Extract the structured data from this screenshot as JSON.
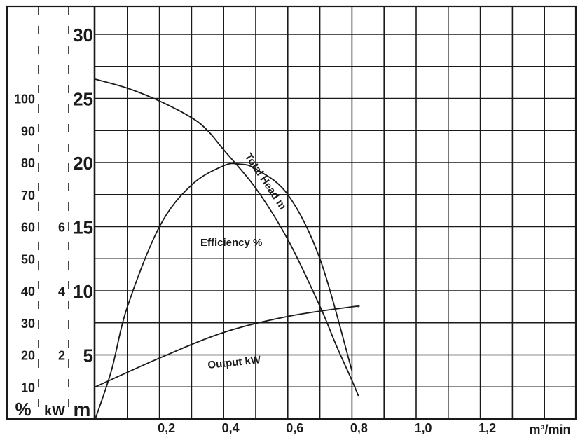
{
  "chart_data": {
    "type": "line",
    "xlabel": "m³/min",
    "x_ticks": [
      "0,2",
      "0,4",
      "0,6",
      "0,8",
      "1,0",
      "1,2"
    ],
    "xlim": [
      0,
      1.5
    ],
    "axes": {
      "head": {
        "unit": "m",
        "ticks": [
          "5",
          "10",
          "15",
          "20",
          "25",
          "30"
        ],
        "ylim": [
          0,
          30
        ]
      },
      "power": {
        "unit": "kW",
        "ticks": [
          "2",
          "4",
          "6"
        ],
        "ylim": [
          0,
          15
        ]
      },
      "efficiency": {
        "unit": "%",
        "ticks": [
          "10",
          "20",
          "30",
          "40",
          "50",
          "60",
          "70",
          "80",
          "90",
          "100"
        ],
        "ylim": [
          0,
          100
        ]
      }
    },
    "grid": true,
    "series": [
      {
        "name": "Total Head m",
        "axis": "head",
        "x": [
          0,
          0.1,
          0.2,
          0.3,
          0.35,
          0.4,
          0.5,
          0.6,
          0.7,
          0.75,
          0.8,
          0.82
        ],
        "y": [
          26.5,
          25.8,
          24.8,
          23.5,
          22.5,
          21.0,
          18.0,
          14.0,
          8.8,
          5.8,
          3.0,
          1.8
        ]
      },
      {
        "name": "Efficiency %",
        "axis": "efficiency",
        "x": [
          0,
          0.05,
          0.1,
          0.2,
          0.3,
          0.4,
          0.45,
          0.5,
          0.6,
          0.7,
          0.8
        ],
        "y": [
          0,
          15,
          35,
          60,
          73,
          79,
          79.5,
          78,
          70,
          50,
          15
        ]
      },
      {
        "name": "Output kW",
        "axis": "power",
        "x": [
          0,
          0.2,
          0.4,
          0.6,
          0.8,
          0.82
        ],
        "y": [
          1.0,
          1.9,
          2.7,
          3.2,
          3.5,
          3.5
        ]
      }
    ]
  }
}
